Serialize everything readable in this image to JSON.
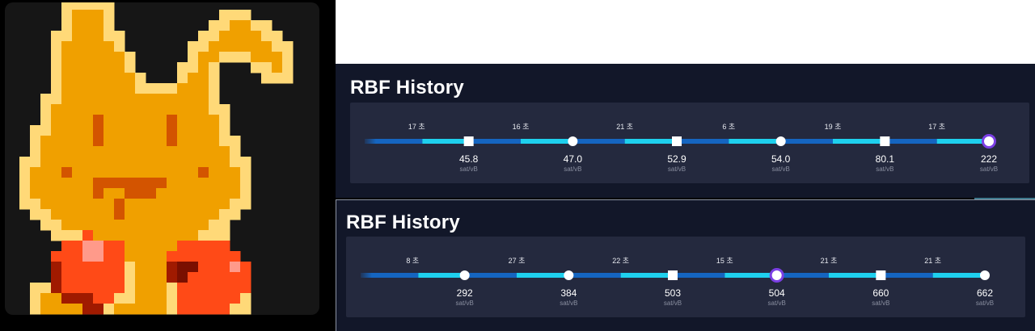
{
  "colors": {
    "page_bg": "#000000",
    "panel_bg": "#121729",
    "timeline_bg": "#24293e",
    "track_dark": "#1565c0",
    "track_light": "#1ed0ee",
    "node_fill": "#ffffff",
    "current_ring": "#7b3fe4",
    "mascot_orange": "#f0a000",
    "mascot_light": "#ffd978",
    "mascot_dark": "#d35400",
    "glove_red": "#ff4a17"
  },
  "mascot": {
    "icon": "bunny-boxer-pixel-icon"
  },
  "panels": [
    {
      "title": "RBF History",
      "intervals": [
        "17 초",
        "16 초",
        "21 초",
        "6 초",
        "19 초",
        "17 초"
      ],
      "nodes": [
        {
          "fee": "45.8",
          "unit": "sat/vB",
          "shape": "square"
        },
        {
          "fee": "47.0",
          "unit": "sat/vB",
          "shape": "circle"
        },
        {
          "fee": "52.9",
          "unit": "sat/vB",
          "shape": "square"
        },
        {
          "fee": "54.0",
          "unit": "sat/vB",
          "shape": "circle"
        },
        {
          "fee": "80.1",
          "unit": "sat/vB",
          "shape": "square"
        },
        {
          "fee": "222",
          "unit": "sat/vB",
          "shape": "current"
        }
      ]
    },
    {
      "title": "RBF History",
      "intervals": [
        "8 초",
        "27 초",
        "22 초",
        "15 초",
        "21 초",
        "21 초"
      ],
      "nodes": [
        {
          "fee": "292",
          "unit": "sat/vB",
          "shape": "circle"
        },
        {
          "fee": "384",
          "unit": "sat/vB",
          "shape": "circle"
        },
        {
          "fee": "503",
          "unit": "sat/vB",
          "shape": "square"
        },
        {
          "fee": "504",
          "unit": "sat/vB",
          "shape": "current"
        },
        {
          "fee": "660",
          "unit": "sat/vB",
          "shape": "square"
        },
        {
          "fee": "662",
          "unit": "sat/vB",
          "shape": "circle"
        }
      ]
    }
  ]
}
